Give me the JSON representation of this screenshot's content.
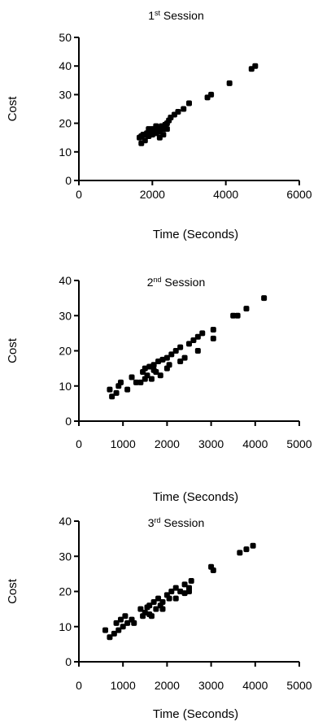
{
  "chart_data": [
    {
      "type": "scatter",
      "title": {
        "number": "1",
        "suffix": "st",
        "rest": " Session"
      },
      "xlabel": "Time (Seconds)",
      "ylabel": "Cost",
      "xlim": [
        0,
        6000
      ],
      "ylim": [
        0,
        50
      ],
      "xticks": [
        0,
        2000,
        4000,
        6000
      ],
      "yticks": [
        0,
        10,
        20,
        30,
        40,
        50
      ],
      "grid": false,
      "series": [
        {
          "points": [
            [
              1650,
              15
            ],
            [
              1700,
              13
            ],
            [
              1750,
              16
            ],
            [
              1800,
              14
            ],
            [
              1850,
              16.5
            ],
            [
              1900,
              15.5
            ],
            [
              1950,
              17
            ],
            [
              2000,
              16
            ],
            [
              2050,
              17.5
            ],
            [
              2100,
              16.5
            ],
            [
              2150,
              18
            ],
            [
              2200,
              17
            ],
            [
              2250,
              19
            ],
            [
              2300,
              18
            ],
            [
              2350,
              19.5
            ],
            [
              2400,
              20
            ],
            [
              2450,
              21
            ],
            [
              2500,
              22
            ],
            [
              2600,
              23
            ],
            [
              2700,
              24
            ],
            [
              2850,
              25
            ],
            [
              3000,
              27
            ],
            [
              3500,
              29
            ],
            [
              3600,
              30
            ],
            [
              4100,
              34
            ],
            [
              4700,
              39
            ],
            [
              4800,
              40
            ],
            [
              1800,
              16
            ],
            [
              2000,
              18
            ],
            [
              2200,
              15
            ],
            [
              1900,
              18
            ],
            [
              2100,
              19
            ],
            [
              2300,
              16
            ],
            [
              1700,
              15.5
            ],
            [
              2400,
              18
            ]
          ]
        }
      ]
    },
    {
      "type": "scatter",
      "title": {
        "number": "2",
        "suffix": "nd",
        "rest": " Session"
      },
      "xlabel": "Time (Seconds)",
      "ylabel": "Cost",
      "xlim": [
        0,
        5000
      ],
      "ylim": [
        0,
        40
      ],
      "xticks": [
        0,
        1000,
        2000,
        3000,
        4000,
        5000
      ],
      "yticks": [
        0,
        10,
        20,
        30,
        40
      ],
      "grid": false,
      "series": [
        {
          "points": [
            [
              700,
              9
            ],
            [
              750,
              7
            ],
            [
              850,
              8
            ],
            [
              900,
              10
            ],
            [
              950,
              11
            ],
            [
              1100,
              9
            ],
            [
              1200,
              12.5
            ],
            [
              1300,
              11
            ],
            [
              1400,
              11
            ],
            [
              1450,
              14
            ],
            [
              1500,
              15
            ],
            [
              1550,
              13
            ],
            [
              1600,
              15.5
            ],
            [
              1650,
              12
            ],
            [
              1700,
              16
            ],
            [
              1750,
              14
            ],
            [
              1800,
              17
            ],
            [
              1850,
              13
            ],
            [
              1900,
              17.5
            ],
            [
              2000,
              18
            ],
            [
              2050,
              16
            ],
            [
              2100,
              19
            ],
            [
              2200,
              20
            ],
            [
              2300,
              21
            ],
            [
              2400,
              18
            ],
            [
              2500,
              22
            ],
            [
              2600,
              23
            ],
            [
              2700,
              24
            ],
            [
              2800,
              25
            ],
            [
              2700,
              20
            ],
            [
              3050,
              26
            ],
            [
              3050,
              23.5
            ],
            [
              3500,
              30
            ],
            [
              3600,
              30
            ],
            [
              3800,
              32
            ],
            [
              4200,
              35
            ],
            [
              1500,
              12
            ],
            [
              1700,
              14.5
            ],
            [
              2000,
              15
            ],
            [
              2300,
              17
            ]
          ]
        }
      ]
    },
    {
      "type": "scatter",
      "title": {
        "number": "3",
        "suffix": "rd",
        "rest": " Session"
      },
      "xlabel": "Time (Seconds)",
      "ylabel": "Cost",
      "xlim": [
        0,
        5000
      ],
      "ylim": [
        0,
        40
      ],
      "xticks": [
        0,
        1000,
        2000,
        3000,
        4000,
        5000
      ],
      "yticks": [
        0,
        10,
        20,
        30,
        40
      ],
      "grid": false,
      "series": [
        {
          "points": [
            [
              600,
              9
            ],
            [
              700,
              7
            ],
            [
              800,
              8
            ],
            [
              850,
              11
            ],
            [
              900,
              9
            ],
            [
              950,
              12
            ],
            [
              1000,
              10
            ],
            [
              1050,
              13
            ],
            [
              1100,
              11
            ],
            [
              1200,
              12
            ],
            [
              1400,
              15
            ],
            [
              1450,
              13
            ],
            [
              1500,
              14
            ],
            [
              1550,
              15.5
            ],
            [
              1600,
              16
            ],
            [
              1650,
              13
            ],
            [
              1700,
              17
            ],
            [
              1750,
              15
            ],
            [
              1800,
              18
            ],
            [
              1850,
              16
            ],
            [
              1900,
              17
            ],
            [
              2000,
              19
            ],
            [
              2050,
              18
            ],
            [
              2100,
              20
            ],
            [
              2200,
              21
            ],
            [
              2300,
              20
            ],
            [
              2400,
              22
            ],
            [
              2500,
              21
            ],
            [
              2550,
              23
            ],
            [
              2500,
              20
            ],
            [
              3000,
              27
            ],
            [
              3050,
              26
            ],
            [
              3650,
              31
            ],
            [
              3800,
              32
            ],
            [
              3950,
              33
            ],
            [
              1250,
              11
            ],
            [
              1600,
              13.5
            ],
            [
              1900,
              15
            ],
            [
              2200,
              18
            ],
            [
              2400,
              19.5
            ]
          ]
        }
      ]
    }
  ]
}
